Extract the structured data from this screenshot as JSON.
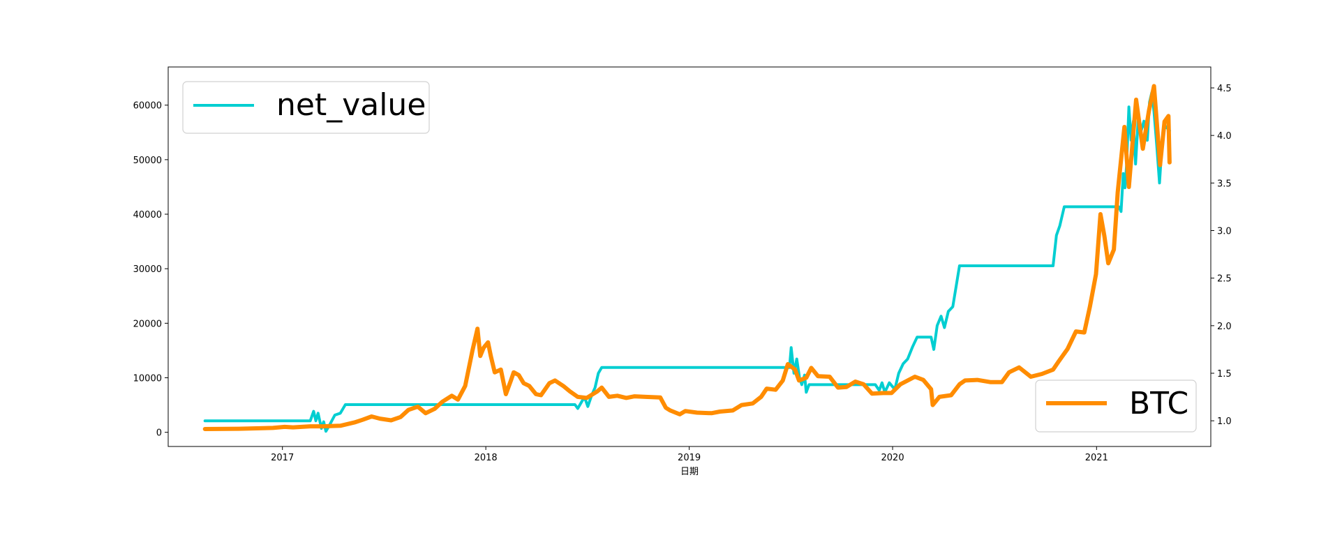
{
  "chart_data": {
    "type": "line",
    "title": "",
    "xlabel": "日期",
    "x_axis": {
      "type": "date",
      "range": [
        "2016-06-10",
        "2021-07-25"
      ],
      "ticks": [
        "2017-01-01",
        "2018-01-01",
        "2019-01-01",
        "2020-01-01",
        "2021-01-01"
      ],
      "tick_labels": [
        "2017",
        "2018",
        "2019",
        "2020",
        "2021"
      ]
    },
    "y_left": {
      "range": [
        -2600,
        67000
      ],
      "ticks": [
        0,
        10000,
        20000,
        30000,
        40000,
        50000,
        60000
      ],
      "tick_labels": [
        "0",
        "10000",
        "20000",
        "30000",
        "40000",
        "50000",
        "60000"
      ]
    },
    "y_right": {
      "range": [
        0.73,
        4.72
      ],
      "ticks": [
        1.0,
        1.5,
        2.0,
        2.5,
        3.0,
        3.5,
        4.0,
        4.5
      ],
      "tick_labels": [
        "1.0",
        "1.5",
        "2.0",
        "2.5",
        "3.0",
        "3.5",
        "4.0",
        "4.5"
      ]
    },
    "grid": false,
    "series": [
      {
        "name": "net_value",
        "axis": "right",
        "color": "#00CED1",
        "legend_position": "upper-left",
        "points": [
          [
            "2016-08-15",
            1.0
          ],
          [
            "2017-02-20",
            1.0
          ],
          [
            "2017-02-26",
            1.1
          ],
          [
            "2017-03-02",
            1.0
          ],
          [
            "2017-03-06",
            1.08
          ],
          [
            "2017-03-12",
            0.92
          ],
          [
            "2017-03-16",
            0.99
          ],
          [
            "2017-03-20",
            0.89
          ],
          [
            "2017-03-27",
            0.96
          ],
          [
            "2017-04-05",
            1.06
          ],
          [
            "2017-04-15",
            1.08
          ],
          [
            "2017-04-24",
            1.17
          ],
          [
            "2018-06-10",
            1.17
          ],
          [
            "2018-06-15",
            1.13
          ],
          [
            "2018-06-22",
            1.2
          ],
          [
            "2018-06-27",
            1.25
          ],
          [
            "2018-07-03",
            1.15
          ],
          [
            "2018-07-10",
            1.27
          ],
          [
            "2018-07-16",
            1.35
          ],
          [
            "2018-07-22",
            1.5
          ],
          [
            "2018-07-28",
            1.56
          ],
          [
            "2019-06-30",
            1.56
          ],
          [
            "2019-07-03",
            1.77
          ],
          [
            "2019-07-08",
            1.5
          ],
          [
            "2019-07-13",
            1.65
          ],
          [
            "2019-07-18",
            1.45
          ],
          [
            "2019-07-22",
            1.38
          ],
          [
            "2019-07-27",
            1.48
          ],
          [
            "2019-07-30",
            1.3
          ],
          [
            "2019-08-04",
            1.38
          ],
          [
            "2019-12-01",
            1.38
          ],
          [
            "2019-12-08",
            1.32
          ],
          [
            "2019-12-13",
            1.4
          ],
          [
            "2019-12-18",
            1.3
          ],
          [
            "2019-12-26",
            1.4
          ],
          [
            "2020-01-05",
            1.33
          ],
          [
            "2020-01-12",
            1.5
          ],
          [
            "2020-01-20",
            1.6
          ],
          [
            "2020-01-28",
            1.65
          ],
          [
            "2020-02-06",
            1.78
          ],
          [
            "2020-02-14",
            1.88
          ],
          [
            "2020-03-10",
            1.88
          ],
          [
            "2020-03-15",
            1.75
          ],
          [
            "2020-03-21",
            2.0
          ],
          [
            "2020-03-28",
            2.1
          ],
          [
            "2020-04-03",
            1.98
          ],
          [
            "2020-04-10",
            2.15
          ],
          [
            "2020-04-18",
            2.2
          ],
          [
            "2020-04-25",
            2.45
          ],
          [
            "2020-04-30",
            2.63
          ],
          [
            "2020-10-15",
            2.63
          ],
          [
            "2020-10-21",
            2.95
          ],
          [
            "2020-10-27",
            3.05
          ],
          [
            "2020-11-04",
            3.25
          ],
          [
            "2021-02-10",
            3.25
          ],
          [
            "2021-02-14",
            3.2
          ],
          [
            "2021-02-18",
            3.6
          ],
          [
            "2021-02-21",
            3.45
          ],
          [
            "2021-02-24",
            3.7
          ],
          [
            "2021-02-28",
            4.3
          ],
          [
            "2021-03-04",
            3.95
          ],
          [
            "2021-03-08",
            4.15
          ],
          [
            "2021-03-12",
            3.7
          ],
          [
            "2021-03-17",
            4.2
          ],
          [
            "2021-03-22",
            4.05
          ],
          [
            "2021-03-27",
            4.15
          ],
          [
            "2021-04-02",
            3.95
          ],
          [
            "2021-04-06",
            4.35
          ],
          [
            "2021-04-10",
            4.45
          ],
          [
            "2021-04-14",
            4.25
          ],
          [
            "2021-04-19",
            3.9
          ],
          [
            "2021-04-24",
            3.5
          ],
          [
            "2021-04-29",
            3.95
          ],
          [
            "2021-05-04",
            4.1
          ],
          [
            "2021-05-12",
            4.05
          ]
        ]
      },
      {
        "name": "BTC",
        "axis": "left",
        "color": "#FF8C00",
        "legend_position": "lower-right",
        "points": [
          [
            "2016-08-15",
            600
          ],
          [
            "2016-10-15",
            650
          ],
          [
            "2016-12-15",
            800
          ],
          [
            "2017-01-05",
            1000
          ],
          [
            "2017-01-20",
            900
          ],
          [
            "2017-02-20",
            1100
          ],
          [
            "2017-03-15",
            1100
          ],
          [
            "2017-04-15",
            1200
          ],
          [
            "2017-05-10",
            1800
          ],
          [
            "2017-05-25",
            2300
          ],
          [
            "2017-06-10",
            2900
          ],
          [
            "2017-06-25",
            2500
          ],
          [
            "2017-07-15",
            2200
          ],
          [
            "2017-08-01",
            2800
          ],
          [
            "2017-08-15",
            4100
          ],
          [
            "2017-09-01",
            4700
          ],
          [
            "2017-09-15",
            3500
          ],
          [
            "2017-10-01",
            4300
          ],
          [
            "2017-10-15",
            5600
          ],
          [
            "2017-11-01",
            6700
          ],
          [
            "2017-11-12",
            6000
          ],
          [
            "2017-11-25",
            8500
          ],
          [
            "2017-12-08",
            15000
          ],
          [
            "2017-12-17",
            19000
          ],
          [
            "2017-12-22",
            14000
          ],
          [
            "2017-12-28",
            15500
          ],
          [
            "2018-01-05",
            16500
          ],
          [
            "2018-01-10",
            14000
          ],
          [
            "2018-01-17",
            11000
          ],
          [
            "2018-01-28",
            11500
          ],
          [
            "2018-02-06",
            7000
          ],
          [
            "2018-02-15",
            9500
          ],
          [
            "2018-02-20",
            11000
          ],
          [
            "2018-03-01",
            10500
          ],
          [
            "2018-03-10",
            9000
          ],
          [
            "2018-03-20",
            8500
          ],
          [
            "2018-04-01",
            7000
          ],
          [
            "2018-04-10",
            6800
          ],
          [
            "2018-04-25",
            9000
          ],
          [
            "2018-05-05",
            9500
          ],
          [
            "2018-05-20",
            8500
          ],
          [
            "2018-06-01",
            7500
          ],
          [
            "2018-06-15",
            6500
          ],
          [
            "2018-07-01",
            6300
          ],
          [
            "2018-07-20",
            7500
          ],
          [
            "2018-07-28",
            8200
          ],
          [
            "2018-08-10",
            6500
          ],
          [
            "2018-08-25",
            6700
          ],
          [
            "2018-09-10",
            6300
          ],
          [
            "2018-09-25",
            6600
          ],
          [
            "2018-10-15",
            6500
          ],
          [
            "2018-11-10",
            6400
          ],
          [
            "2018-11-20",
            4500
          ],
          [
            "2018-11-28",
            4000
          ],
          [
            "2018-12-15",
            3300
          ],
          [
            "2018-12-25",
            3900
          ],
          [
            "2019-01-15",
            3600
          ],
          [
            "2019-02-10",
            3500
          ],
          [
            "2019-02-25",
            3800
          ],
          [
            "2019-03-20",
            4000
          ],
          [
            "2019-04-05",
            5000
          ],
          [
            "2019-04-25",
            5300
          ],
          [
            "2019-05-10",
            6500
          ],
          [
            "2019-05-20",
            8000
          ],
          [
            "2019-06-05",
            7800
          ],
          [
            "2019-06-18",
            9500
          ],
          [
            "2019-06-27",
            12500
          ],
          [
            "2019-07-10",
            11500
          ],
          [
            "2019-07-17",
            9500
          ],
          [
            "2019-07-30",
            10000
          ],
          [
            "2019-08-08",
            11800
          ],
          [
            "2019-08-20",
            10300
          ],
          [
            "2019-09-10",
            10200
          ],
          [
            "2019-09-25",
            8200
          ],
          [
            "2019-10-10",
            8300
          ],
          [
            "2019-10-26",
            9300
          ],
          [
            "2019-11-10",
            8800
          ],
          [
            "2019-11-25",
            7100
          ],
          [
            "2019-12-15",
            7200
          ],
          [
            "2019-12-30",
            7200
          ],
          [
            "2020-01-15",
            8800
          ],
          [
            "2020-02-10",
            10200
          ],
          [
            "2020-02-25",
            9600
          ],
          [
            "2020-03-10",
            7900
          ],
          [
            "2020-03-13",
            5000
          ],
          [
            "2020-03-25",
            6500
          ],
          [
            "2020-04-15",
            6800
          ],
          [
            "2020-04-30",
            8800
          ],
          [
            "2020-05-10",
            9500
          ],
          [
            "2020-06-01",
            9600
          ],
          [
            "2020-06-25",
            9200
          ],
          [
            "2020-07-15",
            9200
          ],
          [
            "2020-07-28",
            11000
          ],
          [
            "2020-08-15",
            11900
          ],
          [
            "2020-09-05",
            10200
          ],
          [
            "2020-09-25",
            10700
          ],
          [
            "2020-10-15",
            11500
          ],
          [
            "2020-10-25",
            13000
          ],
          [
            "2020-11-10",
            15300
          ],
          [
            "2020-11-25",
            18500
          ],
          [
            "2020-12-10",
            18300
          ],
          [
            "2020-12-20",
            23000
          ],
          [
            "2020-12-31",
            29000
          ],
          [
            "2021-01-08",
            40000
          ],
          [
            "2021-01-15",
            36000
          ],
          [
            "2021-01-22",
            31000
          ],
          [
            "2021-02-01",
            33500
          ],
          [
            "2021-02-08",
            44000
          ],
          [
            "2021-02-20",
            56000
          ],
          [
            "2021-02-28",
            45000
          ],
          [
            "2021-03-13",
            61000
          ],
          [
            "2021-03-25",
            52000
          ],
          [
            "2021-04-05",
            59000
          ],
          [
            "2021-04-14",
            63500
          ],
          [
            "2021-04-25",
            49000
          ],
          [
            "2021-05-03",
            57000
          ],
          [
            "2021-05-10",
            58000
          ],
          [
            "2021-05-12",
            49500
          ]
        ]
      }
    ]
  }
}
